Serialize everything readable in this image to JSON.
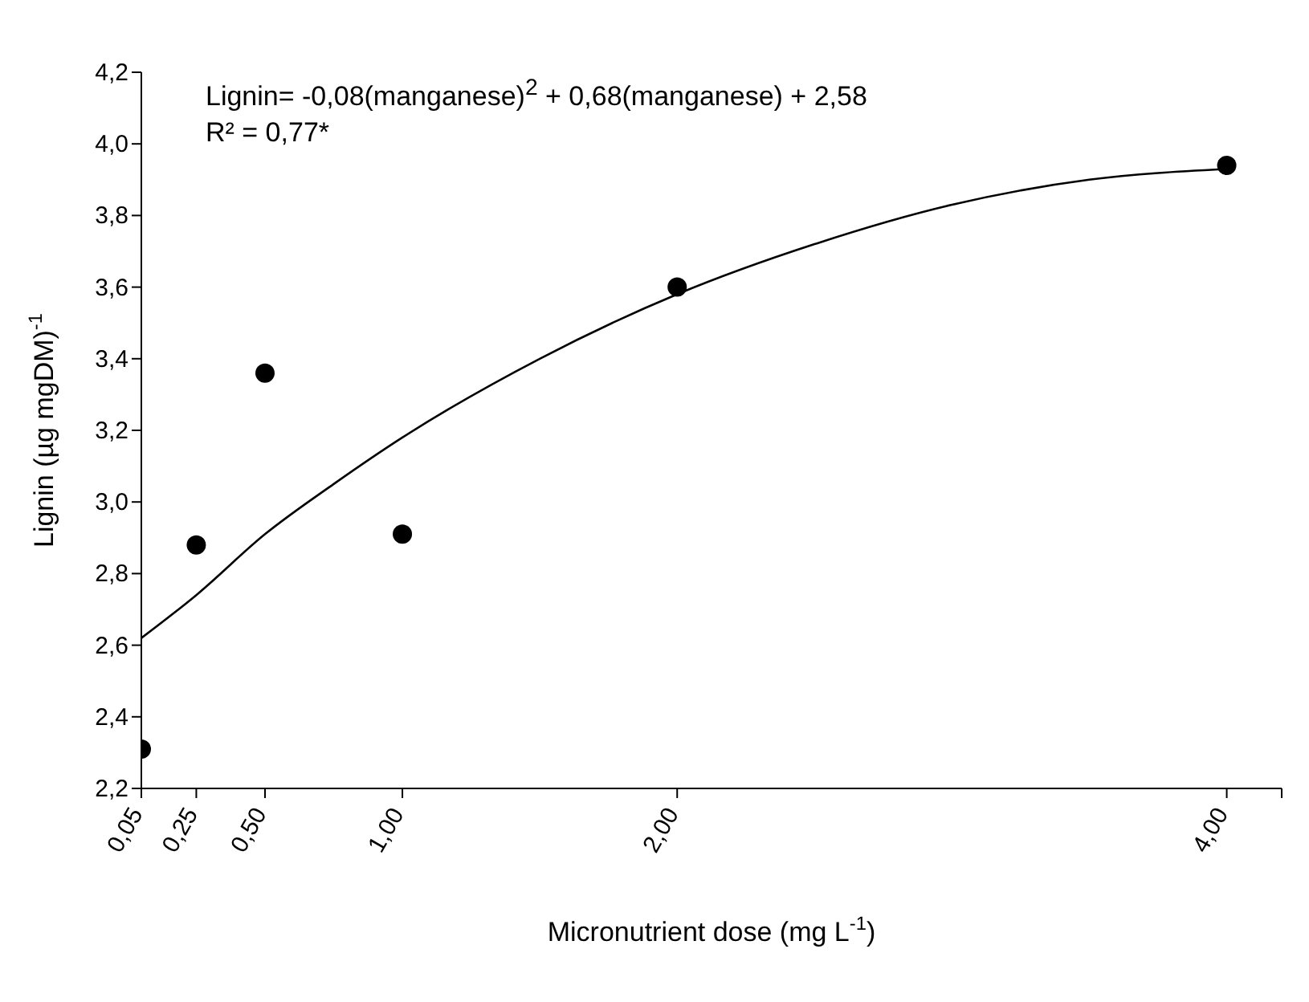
{
  "chart_data": {
    "type": "scatter",
    "xlabel": "Micronutrient dose (mg L$^{-1}$)",
    "ylabel": "Lignin (µg mgDM)$^{-1}$",
    "annotations": [
      "Lignin= -0,08(manganese)$^{2}$ + 0,68(manganese) + 2,58",
      "R² = 0,77*"
    ],
    "series": [
      {
        "color": "#000000",
        "marker": "circle",
        "x": [
          0.05,
          0.25,
          0.5,
          1,
          2,
          4
        ],
        "values": [
          2.31,
          2.88,
          3.36,
          2.91,
          3.6,
          3.94
        ]
      },
      {
        "type": "line",
        "color": "#000000",
        "marker": "none",
        "x": [
          0.05,
          0.25,
          0.5,
          0.75,
          1,
          1.5,
          2,
          2.5,
          3,
          3.5,
          4
        ],
        "values": [
          2.62,
          2.74,
          2.91,
          3.05,
          3.18,
          3.4,
          3.58,
          3.72,
          3.83,
          3.9,
          3.93
        ]
      }
    ],
    "xlim": [
      0.05,
      4.2
    ],
    "xticks": [
      {
        "value": 0.05,
        "label": "0,05"
      },
      {
        "value": 0.25,
        "label": "0,25"
      },
      {
        "value": 0.5,
        "label": "0,50"
      },
      {
        "value": 1,
        "label": "1,00"
      },
      {
        "value": 2,
        "label": "2,00"
      },
      {
        "value": 4,
        "label": "4,00"
      },
      {
        "value": 4.2,
        "label": null
      }
    ],
    "ylim": [
      2.2,
      4.2
    ],
    "yticks": [
      {
        "value": 2.2,
        "label": "2,2"
      },
      {
        "value": 2.4,
        "label": "2,4"
      },
      {
        "value": 2.6,
        "label": "2,6"
      },
      {
        "value": 2.8,
        "label": "2,8"
      },
      {
        "value": 3.0,
        "label": "3,0"
      },
      {
        "value": 3.2,
        "label": "3,2"
      },
      {
        "value": 3.4,
        "label": "3,4"
      },
      {
        "value": 3.6,
        "label": "3,6"
      },
      {
        "value": 3.8,
        "label": "3,8"
      },
      {
        "value": 4.0,
        "label": "4,0"
      },
      {
        "value": 4.2,
        "label": "4,2"
      }
    ],
    "grid": false,
    "legend": false
  }
}
